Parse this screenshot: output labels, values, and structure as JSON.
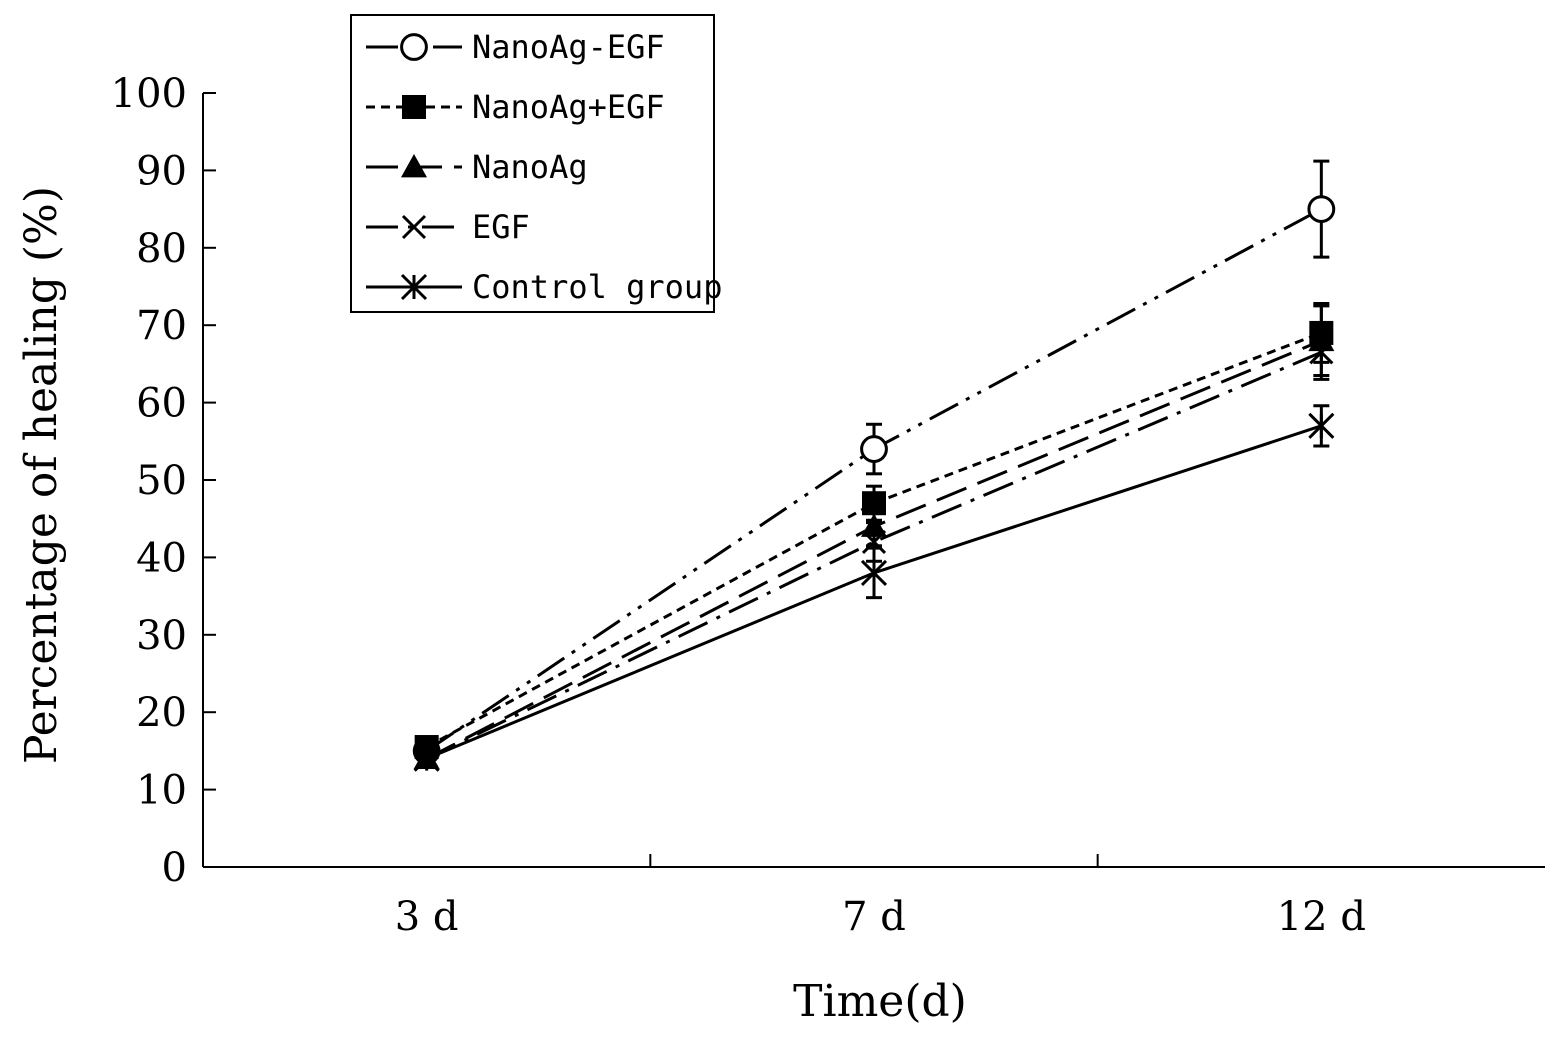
{
  "chart_data": {
    "type": "line",
    "title": "",
    "xlabel": "Time(d)",
    "ylabel": "Percentage of healing (%)",
    "categories": [
      "3 d",
      "7 d",
      "12 d"
    ],
    "ylim": [
      0,
      100
    ],
    "yticks": [
      0,
      10,
      20,
      30,
      40,
      50,
      60,
      70,
      80,
      90,
      100
    ],
    "grid": false,
    "legend_position": "top-left",
    "colors": {
      "line": "#000000",
      "background": "#ffffff"
    },
    "series": [
      {
        "name": "NanoAg-EGF",
        "marker": "open-circle",
        "line_style": "dash-dot-dot",
        "values": [
          15,
          54,
          85
        ],
        "errors": [
          0,
          3.2,
          6.2
        ]
      },
      {
        "name": "NanoAg+EGF",
        "marker": "filled-square",
        "line_style": "short-dash",
        "values": [
          15.5,
          47,
          69
        ],
        "errors": [
          0,
          2.2,
          3.8
        ]
      },
      {
        "name": "NanoAg",
        "marker": "filled-triangle",
        "line_style": "long-dash",
        "values": [
          14,
          44,
          68
        ],
        "errors": [
          0,
          2.5,
          4.5
        ]
      },
      {
        "name": "EGF",
        "marker": "x",
        "line_style": "dash-dot",
        "values": [
          14,
          42,
          66.5
        ],
        "errors": [
          0,
          2.5,
          3.5
        ]
      },
      {
        "name": "Control group",
        "marker": "asterisk",
        "line_style": "solid",
        "values": [
          14,
          38,
          57
        ],
        "errors": [
          0,
          3.2,
          2.6
        ]
      }
    ]
  }
}
